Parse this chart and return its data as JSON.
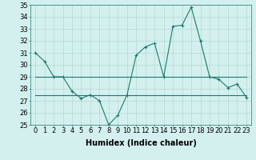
{
  "xlabel": "Humidex (Indice chaleur)",
  "x": [
    0,
    1,
    2,
    3,
    4,
    5,
    6,
    7,
    8,
    9,
    10,
    11,
    12,
    13,
    14,
    15,
    16,
    17,
    18,
    19,
    20,
    21,
    22,
    23
  ],
  "line1": [
    31,
    30.3,
    29,
    29,
    27.8,
    27.2,
    27.5,
    27.0,
    25.0,
    25.8,
    27.5,
    30.8,
    31.5,
    31.8,
    29.0,
    33.2,
    33.3,
    34.8,
    32.0,
    29.0,
    28.8,
    28.1,
    28.4,
    27.3
  ],
  "line2_top": [
    29,
    29,
    29,
    29,
    29,
    29,
    29,
    29,
    29,
    29,
    29,
    29,
    29,
    29,
    29,
    29,
    29,
    29,
    29,
    29,
    29,
    29,
    29,
    29
  ],
  "line2_bot": [
    27.5,
    27.5,
    27.5,
    27.5,
    27.5,
    27.5,
    27.5,
    27.5,
    27.5,
    27.5,
    27.5,
    27.5,
    27.5,
    27.5,
    27.5,
    27.5,
    27.5,
    27.5,
    27.5,
    27.5,
    27.5,
    27.5,
    27.5,
    27.5
  ],
  "line_color": "#1a7a6e",
  "bg_color": "#d4f0ee",
  "grid_color": "#b2d8d4",
  "ylim": [
    25,
    35
  ],
  "yticks": [
    25,
    26,
    27,
    28,
    29,
    30,
    31,
    32,
    33,
    34,
    35
  ],
  "marker": "+",
  "marker_size": 3,
  "line_width": 0.8,
  "font_size": 6.5
}
